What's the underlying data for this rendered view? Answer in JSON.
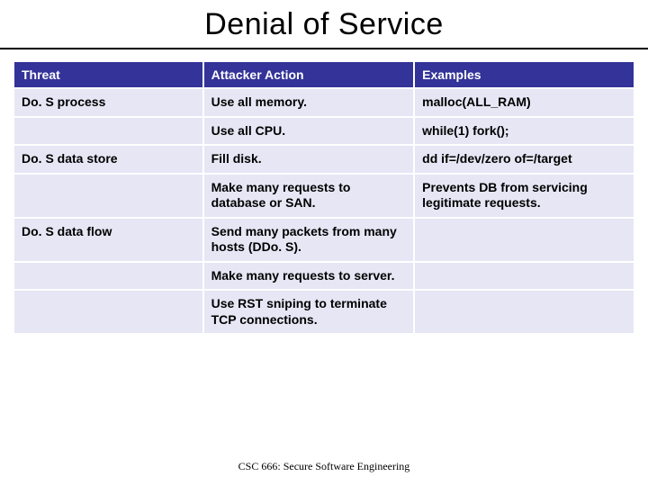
{
  "slide": {
    "title": "Denial of Service",
    "footer": "CSC 666: Secure Software Engineering"
  },
  "table": {
    "type": "table",
    "header_bg": "#333399",
    "header_fg": "#ffffff",
    "cell_bg": "#e6e6f5",
    "cell_fg": "#000000",
    "border_spacing": 2,
    "font_size": 14,
    "font_weight": "bold",
    "column_widths_pct": [
      30.5,
      34,
      35.5
    ],
    "columns": [
      "Threat",
      "Attacker Action",
      "Examples"
    ],
    "rows": [
      [
        "Do. S process",
        "Use all memory.",
        "malloc(ALL_RAM)"
      ],
      [
        "",
        "Use all CPU.",
        "while(1) fork();"
      ],
      [
        "Do. S data store",
        "Fill disk.",
        "dd if=/dev/zero of=/target"
      ],
      [
        "",
        "Make many requests to database or SAN.",
        "Prevents DB from servicing legitimate requests."
      ],
      [
        "Do. S data flow",
        "Send many packets from many hosts (DDo. S).",
        ""
      ],
      [
        "",
        "Make many requests to server.",
        ""
      ],
      [
        "",
        "Use RST sniping to terminate TCP connections.",
        ""
      ]
    ]
  }
}
